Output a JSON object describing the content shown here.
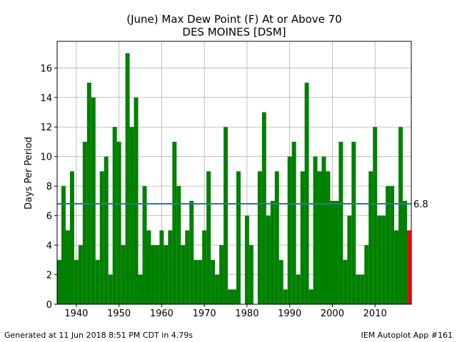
{
  "chart_data": {
    "type": "bar",
    "title": "(June) Max Dew Point (F) At or Above 70",
    "subtitle": "DES MOINES [DSM]",
    "ylabel": "Days Per Period",
    "xlabel": "",
    "xlim": [
      1935.5,
      2018.5
    ],
    "ylim": [
      0,
      17.8
    ],
    "xticks": [
      1940,
      1950,
      1960,
      1970,
      1980,
      1990,
      2000,
      2010
    ],
    "yticks": [
      0,
      2,
      4,
      6,
      8,
      10,
      12,
      14,
      16
    ],
    "grid": true,
    "bar_color": "#008000",
    "highlight_color": "#ff0000",
    "average_line": {
      "value": 6.8,
      "label": "6.8",
      "color": "#1f77b4"
    },
    "series": [
      {
        "x": [
          1936,
          1937,
          1938,
          1939,
          1940,
          1941,
          1942,
          1943,
          1944,
          1945,
          1946,
          1947,
          1948,
          1949,
          1950,
          1951,
          1952,
          1953,
          1954,
          1955,
          1956,
          1957,
          1958,
          1959,
          1960,
          1961,
          1962,
          1963,
          1964,
          1965,
          1966,
          1967,
          1968,
          1969,
          1970,
          1971,
          1972,
          1973,
          1974,
          1975,
          1976,
          1977,
          1978,
          1979,
          1980,
          1981,
          1982,
          1983,
          1984,
          1985,
          1986,
          1987,
          1988,
          1989,
          1990,
          1991,
          1992,
          1993,
          1994,
          1995,
          1996,
          1997,
          1998,
          1999,
          2000,
          2001,
          2002,
          2003,
          2004,
          2005,
          2006,
          2007,
          2008,
          2009,
          2010,
          2011,
          2012,
          2013,
          2014,
          2015,
          2016,
          2017,
          2018
        ],
        "values": [
          3,
          8,
          5,
          9,
          3,
          4,
          11,
          15,
          14,
          3,
          9,
          10,
          2,
          12,
          11,
          4,
          17,
          12,
          14,
          2,
          8,
          5,
          4,
          4,
          5,
          4,
          5,
          11,
          8,
          4,
          5,
          7,
          3,
          3,
          5,
          9,
          3,
          2,
          4,
          12,
          1,
          1,
          9,
          0,
          6,
          4,
          0,
          9,
          13,
          6,
          7,
          9,
          3,
          1,
          10,
          11,
          2,
          9,
          15,
          1,
          10,
          9,
          10,
          9,
          7,
          7,
          11,
          3,
          6,
          11,
          2,
          2,
          4,
          9,
          12,
          6,
          6,
          8,
          8,
          5,
          12,
          7,
          5
        ],
        "highlight_last": true
      }
    ]
  },
  "footer": {
    "left": "Generated at 11 Jun 2018 8:51 PM CDT in 4.79s",
    "right": "IEM Autoplot App #161"
  }
}
